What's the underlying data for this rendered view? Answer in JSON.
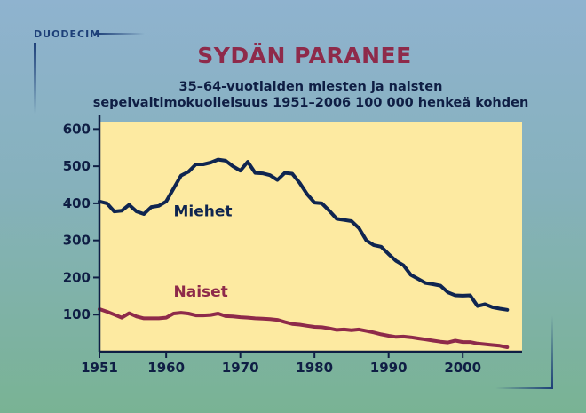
{
  "brand": "DUODECIM",
  "chart_data": {
    "type": "line",
    "title": "SYDÄN PARANEE",
    "subtitle_lines": [
      "35–64-vuotiaiden miesten ja naisten",
      "sepelvaltimokuolleisuus 1951–2006 100 000 henkeä kohden"
    ],
    "xlabel": "",
    "ylabel": "",
    "xlim": [
      1951,
      2008
    ],
    "ylim": [
      0,
      620
    ],
    "x_ticks": [
      1951,
      1960,
      1970,
      1980,
      1990,
      2000
    ],
    "y_ticks": [
      100,
      200,
      300,
      400,
      500,
      600
    ],
    "grid": false,
    "legend": "inline labels",
    "series": [
      {
        "name": "Miehet",
        "color": "#0f2550",
        "label_color": "#0f2550",
        "label_anchor": [
          1961,
          365
        ],
        "x": [
          1951,
          1952,
          1953,
          1954,
          1955,
          1956,
          1957,
          1958,
          1959,
          1960,
          1961,
          1962,
          1963,
          1964,
          1965,
          1966,
          1967,
          1968,
          1969,
          1970,
          1971,
          1972,
          1973,
          1974,
          1975,
          1976,
          1977,
          1978,
          1979,
          1980,
          1981,
          1982,
          1983,
          1984,
          1985,
          1986,
          1987,
          1988,
          1989,
          1990,
          1991,
          1992,
          1993,
          1994,
          1995,
          1996,
          1997,
          1998,
          1999,
          2000,
          2001,
          2002,
          2003,
          2004,
          2005,
          2006
        ],
        "values": [
          405,
          400,
          378,
          380,
          396,
          378,
          371,
          390,
          393,
          405,
          440,
          475,
          485,
          505,
          505,
          510,
          518,
          515,
          500,
          488,
          512,
          482,
          481,
          476,
          463,
          482,
          480,
          455,
          425,
          402,
          400,
          380,
          358,
          355,
          352,
          333,
          300,
          287,
          283,
          263,
          245,
          233,
          207,
          196,
          185,
          182,
          178,
          160,
          152,
          151,
          152,
          123,
          128,
          120,
          116,
          113
        ]
      },
      {
        "name": "Naiset",
        "color": "#8e2a4a",
        "label_color": "#8e2a4a",
        "label_anchor": [
          1961,
          148
        ],
        "x": [
          1951,
          1952,
          1953,
          1954,
          1955,
          1956,
          1957,
          1958,
          1959,
          1960,
          1961,
          1962,
          1963,
          1964,
          1965,
          1966,
          1967,
          1968,
          1969,
          1970,
          1971,
          1972,
          1973,
          1974,
          1975,
          1976,
          1977,
          1978,
          1979,
          1980,
          1981,
          1982,
          1983,
          1984,
          1985,
          1986,
          1987,
          1988,
          1989,
          1990,
          1991,
          1992,
          1993,
          1994,
          1995,
          1996,
          1997,
          1998,
          1999,
          2000,
          2001,
          2002,
          2003,
          2004,
          2005,
          2006
        ],
        "values": [
          115,
          108,
          100,
          92,
          104,
          95,
          90,
          90,
          90,
          92,
          103,
          105,
          103,
          98,
          98,
          99,
          103,
          96,
          95,
          93,
          92,
          90,
          89,
          88,
          86,
          80,
          75,
          73,
          70,
          67,
          66,
          63,
          59,
          60,
          58,
          60,
          56,
          52,
          47,
          43,
          40,
          41,
          39,
          36,
          33,
          30,
          27,
          25,
          30,
          26,
          26,
          22,
          20,
          18,
          16,
          12
        ]
      }
    ]
  },
  "colors": {
    "plot_background": "#fdeaa1",
    "axis": "#0f1e44",
    "title": "#8e2a4a",
    "brand": "#1d3f78"
  }
}
